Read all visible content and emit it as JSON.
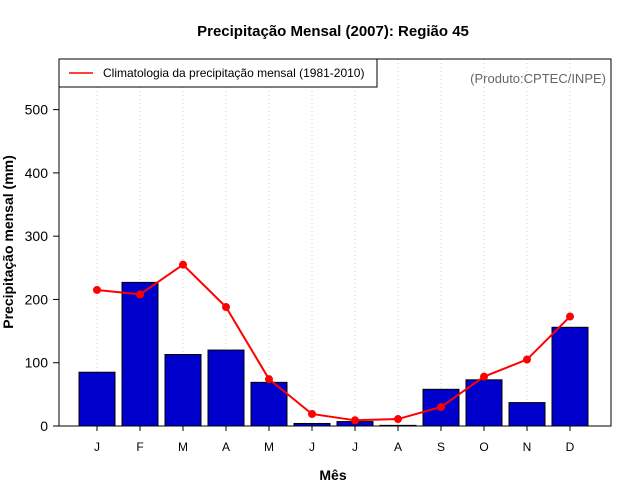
{
  "chart_data": {
    "type": "bar",
    "title": "Precipitação Mensal (2007): Região 45",
    "xlabel": "Mês",
    "ylabel": "Precipitação mensal (mm)",
    "source": "(Produto:CPTEC/INPE)",
    "categories": [
      "J",
      "F",
      "M",
      "A",
      "M",
      "J",
      "J",
      "A",
      "S",
      "O",
      "N",
      "D"
    ],
    "ylim": [
      0,
      580
    ],
    "yticks": [
      0,
      100,
      200,
      300,
      400,
      500
    ],
    "series": [
      {
        "name": "Precipitação mensal 2007",
        "type": "bar",
        "color": "#0000cc",
        "values": [
          85,
          227,
          113,
          120,
          69,
          4,
          7,
          1,
          58,
          73,
          37,
          156
        ]
      },
      {
        "name": "Climatologia da precipitação mensal (1981-2010)",
        "type": "line",
        "color": "#ff0000",
        "values": [
          215,
          208,
          255,
          188,
          74,
          19,
          9,
          11,
          30,
          78,
          105,
          173
        ]
      }
    ],
    "legend": {
      "position": "top-left",
      "entries": [
        "Climatologia da precipitação mensal (1981-2010)"
      ]
    },
    "grid": {
      "vertical": true,
      "style": "dotted"
    }
  }
}
